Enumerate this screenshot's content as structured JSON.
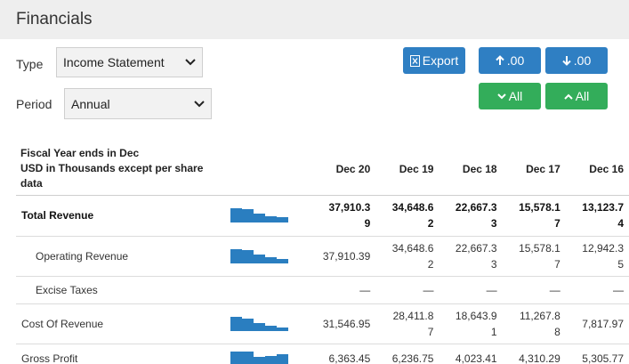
{
  "page": {
    "title": "Financials"
  },
  "controls": {
    "type_label": "Type",
    "type_value": "Income Statement",
    "period_label": "Period",
    "period_value": "Annual",
    "export_label": "Export",
    "increase_decimals_label": ".00",
    "decrease_decimals_label": ".00",
    "expand_all_label": "All",
    "collapse_all_label": "All"
  },
  "table": {
    "header_lines": [
      "Fiscal Year ends in Dec",
      "USD in Thousands except per share",
      "data"
    ],
    "columns": [
      "Dec 20",
      "Dec 19",
      "Dec 18",
      "Dec 17",
      "Dec 16"
    ],
    "rows": [
      {
        "label": "Total Revenue",
        "bold": true,
        "indent": false,
        "spark": [
          1.0,
          0.91,
          0.6,
          0.41,
          0.35
        ],
        "values": [
          [
            "37,910.3",
            "9"
          ],
          [
            "34,648.6",
            "2"
          ],
          [
            "22,667.3",
            "3"
          ],
          [
            "15,578.1",
            "7"
          ],
          [
            "13,123.7",
            "4"
          ]
        ]
      },
      {
        "label": "Operating Revenue",
        "bold": false,
        "indent": true,
        "spark": [
          1.0,
          0.91,
          0.6,
          0.41,
          0.34
        ],
        "values": [
          [
            "37,910.39"
          ],
          [
            "34,648.6",
            "2"
          ],
          [
            "22,667.3",
            "3"
          ],
          [
            "15,578.1",
            "7"
          ],
          [
            "12,942.3",
            "5"
          ]
        ]
      },
      {
        "label": "Excise Taxes",
        "bold": false,
        "indent": true,
        "spark": [],
        "values": [
          [
            "—"
          ],
          [
            "—"
          ],
          [
            "—"
          ],
          [
            "—"
          ],
          [
            "—"
          ]
        ]
      },
      {
        "label": "Cost Of Revenue",
        "bold": false,
        "indent": false,
        "spark": [
          1.0,
          0.9,
          0.59,
          0.36,
          0.25
        ],
        "values": [
          [
            "31,546.95"
          ],
          [
            "28,411.8",
            "7"
          ],
          [
            "18,643.9",
            "1"
          ],
          [
            "11,267.8",
            "8"
          ],
          [
            "7,817.97"
          ]
        ]
      },
      {
        "label": "Gross Profit",
        "bold": false,
        "indent": false,
        "spark": [
          1.0,
          0.98,
          0.63,
          0.68,
          0.83
        ],
        "values": [
          [
            "6,363.45"
          ],
          [
            "6,236.75"
          ],
          [
            "4,023.41"
          ],
          [
            "4,310.29"
          ],
          [
            "5,305.77"
          ]
        ]
      }
    ]
  },
  "colors": {
    "blue_button": "#2f7fc3",
    "green_button": "#33ad5a",
    "sparkline": "#2a7ec0",
    "header_bg": "#eeeeee"
  }
}
